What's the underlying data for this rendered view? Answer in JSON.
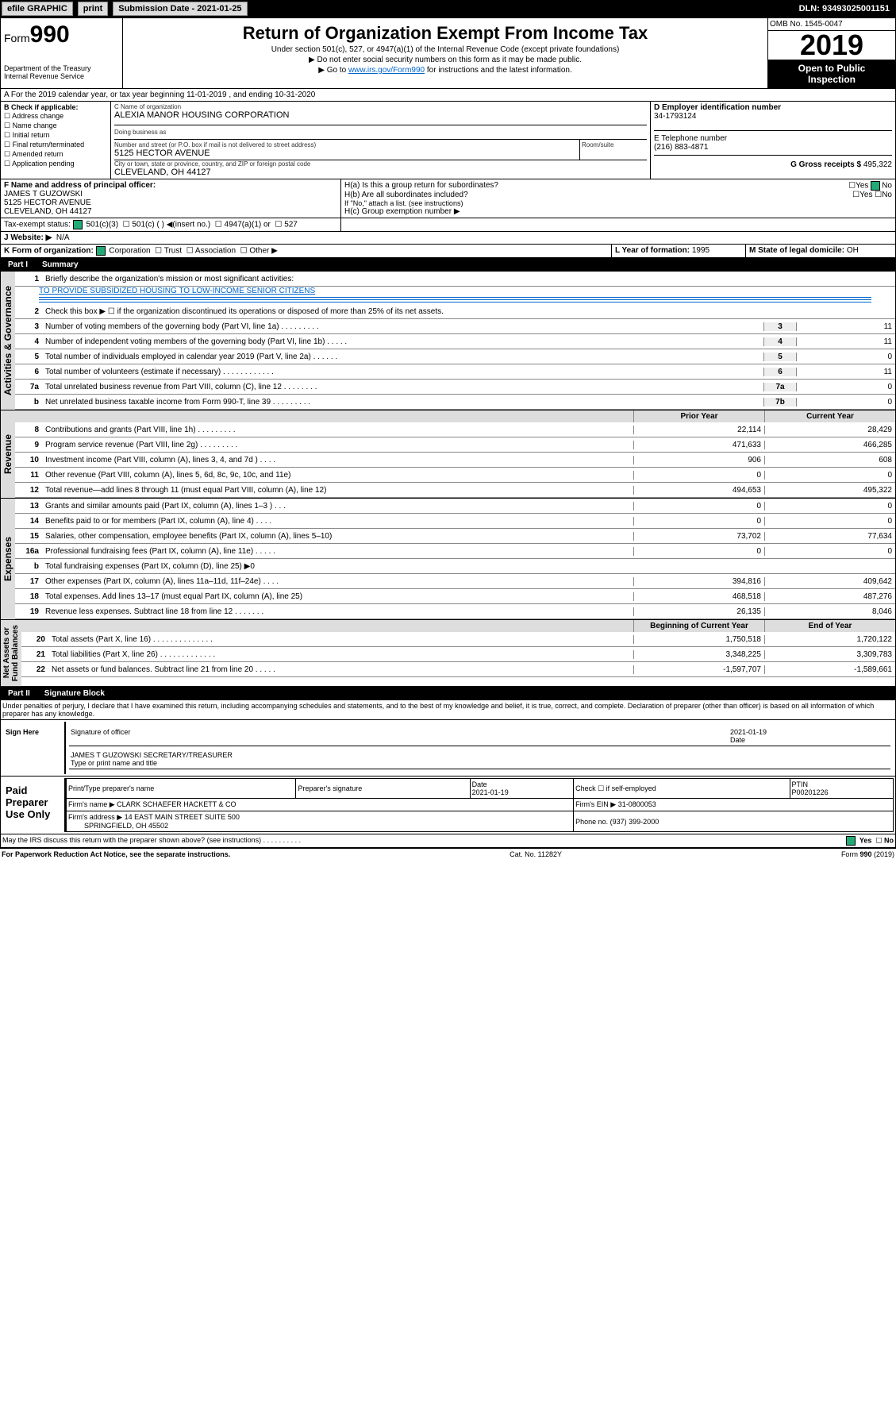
{
  "topbar": {
    "efile": "efile GRAPHIC",
    "print": "print",
    "subdate_lbl": "Submission Date - ",
    "subdate": "2021-01-25",
    "dln": "DLN: 93493025001151"
  },
  "header": {
    "form": "Form",
    "num": "990",
    "dept": "Department of the Treasury\nInternal Revenue Service",
    "title": "Return of Organization Exempt From Income Tax",
    "sub1": "Under section 501(c), 527, or 4947(a)(1) of the Internal Revenue Code (except private foundations)",
    "sub2": "▶ Do not enter social security numbers on this form as it may be made public.",
    "sub3": "▶ Go to www.irs.gov/Form990 for instructions and the latest information.",
    "omb": "OMB No. 1545-0047",
    "year": "2019",
    "opub": "Open to Public\nInspection"
  },
  "A": {
    "line": "A For the 2019 calendar year, or tax year beginning 11-01-2019   , and ending 10-31-2020"
  },
  "B": {
    "hdr": "B Check if applicable:",
    "items": [
      "Address change",
      "Name change",
      "Initial return",
      "Final return/terminated",
      "Amended return",
      "Application pending"
    ]
  },
  "C": {
    "name_lbl": "C Name of organization",
    "name": "ALEXIA MANOR HOUSING CORPORATION",
    "dba_lbl": "Doing business as",
    "dba": "",
    "addr_lbl": "Number and street (or P.O. box if mail is not delivered to street address)",
    "room_lbl": "Room/suite",
    "addr": "5125 HECTOR AVENUE",
    "city_lbl": "City or town, state or province, country, and ZIP or foreign postal code",
    "city": "CLEVELAND, OH  44127"
  },
  "D": {
    "lbl": "D Employer identification number",
    "val": "34-1793124"
  },
  "E": {
    "lbl": "E Telephone number",
    "val": "(216) 883-4871"
  },
  "G": {
    "lbl": "G Gross receipts $",
    "val": "495,322"
  },
  "F": {
    "lbl": "F Name and address of principal officer:",
    "name": "JAMES T GUZOWSKI",
    "addr": "5125 HECTOR AVENUE",
    "city": "CLEVELAND, OH  44127"
  },
  "H": {
    "a": "H(a)  Is this a group return for subordinates?",
    "b": "H(b)  Are all subordinates included?",
    "bnote": "If \"No,\" attach a list. (see instructions)",
    "c": "H(c)  Group exemption number ▶",
    "yes": "Yes",
    "no": "No"
  },
  "I": {
    "lbl": "Tax-exempt status:",
    "opts": [
      "501(c)(3)",
      "501(c) (  ) ◀(insert no.)",
      "4947(a)(1) or",
      "527"
    ]
  },
  "J": {
    "lbl": "J  Website: ▶",
    "val": "N/A"
  },
  "K": {
    "lbl": "K Form of organization:",
    "opts": [
      "Corporation",
      "Trust",
      "Association",
      "Other ▶"
    ]
  },
  "L": {
    "lbl": "L Year of formation:",
    "val": "1995"
  },
  "M": {
    "lbl": "M State of legal domicile:",
    "val": "OH"
  },
  "part1": {
    "num": "Part I",
    "title": "Summary"
  },
  "p1": {
    "l1": "Briefly describe the organization's mission or most significant activities:",
    "l1v": "TO PROVIDE SUBSIDIZED HOUSING TO LOW-INCOME SENIOR CITIZENS",
    "l2": "Check this box ▶ ☐  if the organization discontinued its operations or disposed of more than 25% of its net assets.",
    "rows": [
      {
        "n": "3",
        "d": "Number of voting members of the governing body (Part VI, line 1a)  .   .   .   .   .   .   .   .   .",
        "a": "3",
        "v": "11"
      },
      {
        "n": "4",
        "d": "Number of independent voting members of the governing body (Part VI, line 1b)  .   .   .   .   .",
        "a": "4",
        "v": "11"
      },
      {
        "n": "5",
        "d": "Total number of individuals employed in calendar year 2019 (Part V, line 2a)  .   .   .   .   .   .",
        "a": "5",
        "v": "0"
      },
      {
        "n": "6",
        "d": "Total number of volunteers (estimate if necessary)  .   .   .   .   .   .   .   .   .   .   .   .",
        "a": "6",
        "v": "11"
      },
      {
        "n": "7a",
        "d": "Total unrelated business revenue from Part VIII, column (C), line 12  .   .   .   .   .   .   .   .",
        "a": "7a",
        "v": "0"
      },
      {
        "n": "b",
        "d": "Net unrelated business taxable income from Form 990-T, line 39  .   .   .   .   .   .   .   .   .",
        "a": "7b",
        "v": "0"
      }
    ]
  },
  "vert": {
    "gov": "Activities & Governance",
    "rev": "Revenue",
    "exp": "Expenses",
    "net": "Net Assets or\nFund Balances"
  },
  "cols": {
    "py": "Prior Year",
    "cy": "Current Year",
    "boy": "Beginning of Current Year",
    "eoy": "End of Year"
  },
  "rev": [
    {
      "n": "8",
      "d": "Contributions and grants (Part VIII, line 1h)  .   .   .   .   .   .   .   .   .",
      "p": "22,114",
      "c": "28,429"
    },
    {
      "n": "9",
      "d": "Program service revenue (Part VIII, line 2g)  .   .   .   .   .   .   .   .   .",
      "p": "471,633",
      "c": "466,285"
    },
    {
      "n": "10",
      "d": "Investment income (Part VIII, column (A), lines 3, 4, and 7d )  .   .   .   .",
      "p": "906",
      "c": "608"
    },
    {
      "n": "11",
      "d": "Other revenue (Part VIII, column (A), lines 5, 6d, 8c, 9c, 10c, and 11e)",
      "p": "0",
      "c": "0"
    },
    {
      "n": "12",
      "d": "Total revenue—add lines 8 through 11 (must equal Part VIII, column (A), line 12)",
      "p": "494,653",
      "c": "495,322"
    }
  ],
  "exp": [
    {
      "n": "13",
      "d": "Grants and similar amounts paid (Part IX, column (A), lines 1–3 )  .   .   .",
      "p": "0",
      "c": "0"
    },
    {
      "n": "14",
      "d": "Benefits paid to or for members (Part IX, column (A), line 4)  .   .   .   .",
      "p": "0",
      "c": "0"
    },
    {
      "n": "15",
      "d": "Salaries, other compensation, employee benefits (Part IX, column (A), lines 5–10)",
      "p": "73,702",
      "c": "77,634"
    },
    {
      "n": "16a",
      "d": "Professional fundraising fees (Part IX, column (A), line 11e)  .   .   .   .   .",
      "p": "0",
      "c": "0"
    },
    {
      "n": "b",
      "d": "Total fundraising expenses (Part IX, column (D), line 25) ▶0",
      "p": "",
      "c": ""
    },
    {
      "n": "17",
      "d": "Other expenses (Part IX, column (A), lines 11a–11d, 11f–24e)  .   .   .   .",
      "p": "394,816",
      "c": "409,642"
    },
    {
      "n": "18",
      "d": "Total expenses. Add lines 13–17 (must equal Part IX, column (A), line 25)",
      "p": "468,518",
      "c": "487,276"
    },
    {
      "n": "19",
      "d": "Revenue less expenses. Subtract line 18 from line 12  .   .   .   .   .   .   .",
      "p": "26,135",
      "c": "8,046"
    }
  ],
  "net": [
    {
      "n": "20",
      "d": "Total assets (Part X, line 16)  .   .   .   .   .   .   .   .   .   .   .   .   .   .",
      "p": "1,750,518",
      "c": "1,720,122"
    },
    {
      "n": "21",
      "d": "Total liabilities (Part X, line 26)  .   .   .   .   .   .   .   .   .   .   .   .   .",
      "p": "3,348,225",
      "c": "3,309,783"
    },
    {
      "n": "22",
      "d": "Net assets or fund balances. Subtract line 21 from line 20  .   .   .   .   .",
      "p": "-1,597,707",
      "c": "-1,589,661"
    }
  ],
  "part2": {
    "num": "Part II",
    "title": "Signature Block"
  },
  "perjury": "Under penalties of perjury, I declare that I have examined this return, including accompanying schedules and statements, and to the best of my knowledge and belief, it is true, correct, and complete. Declaration of preparer (other than officer) is based on all information of which preparer has any knowledge.",
  "sign": {
    "here": "Sign Here",
    "sig_lbl": "Signature of officer",
    "date": "2021-01-19",
    "date_lbl": "Date",
    "name": "JAMES T GUZOWSKI  SECRETARY/TREASURER",
    "name_lbl": "Type or print name and title"
  },
  "paid": {
    "hdr": "Paid Preparer Use Only",
    "h_name": "Print/Type preparer's name",
    "h_sig": "Preparer's signature",
    "h_date": "Date",
    "date": "2021-01-19",
    "h_self": "Check ☐ if self-employed",
    "h_ptin": "PTIN",
    "ptin": "P00201226",
    "firm_lbl": "Firm's name   ▶",
    "firm": "CLARK SCHAEFER HACKETT & CO",
    "ein_lbl": "Firm's EIN ▶",
    "ein": "31-0800053",
    "addr_lbl": "Firm's address ▶",
    "addr": "14 EAST MAIN STREET SUITE 500",
    "city": "SPRINGFIELD, OH  45502",
    "phone_lbl": "Phone no.",
    "phone": "(937) 399-2000"
  },
  "discuss": {
    "q": "May the IRS discuss this return with the preparer shown above? (see instructions)  .   .   .   .   .   .   .   .   .   .",
    "yes": "Yes",
    "no": "No"
  },
  "foot": {
    "pra": "For Paperwork Reduction Act Notice, see the separate instructions.",
    "cat": "Cat. No. 11282Y",
    "form": "Form 990 (2019)"
  }
}
